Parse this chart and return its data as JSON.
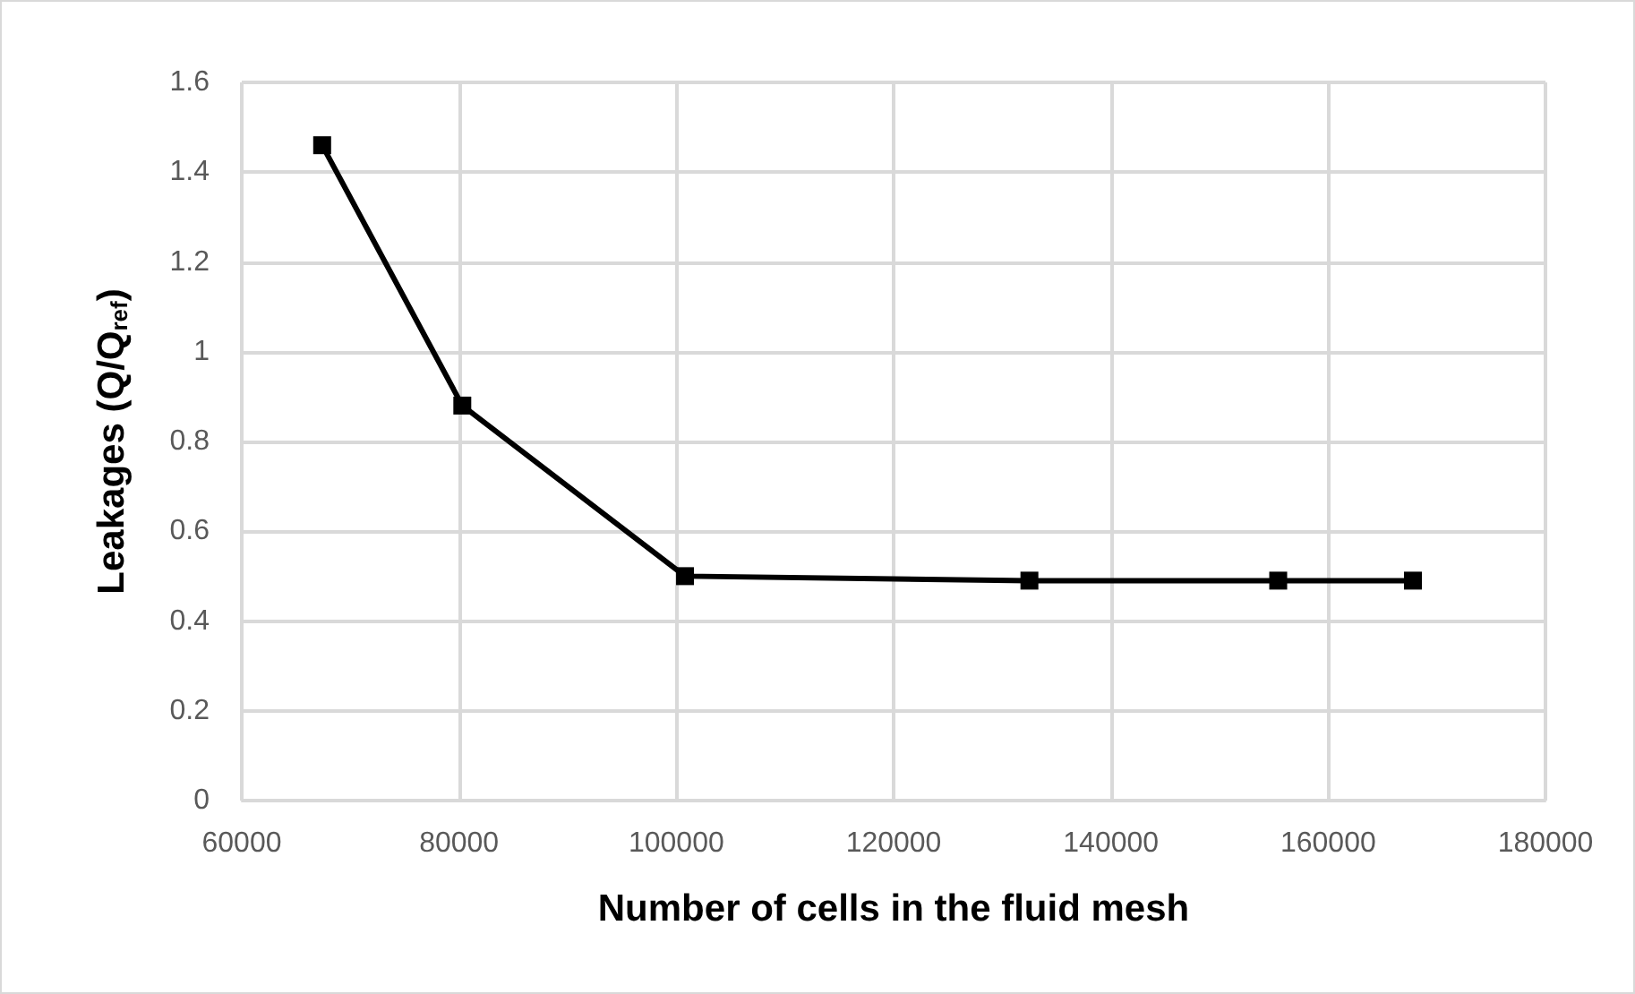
{
  "chart_data": {
    "type": "line",
    "xlabel": "Number of cells in the fluid mesh",
    "ylabel": "Leakages (Q/Q$_{ref}$)",
    "x": [
      67400,
      80300,
      100800,
      132500,
      155400,
      167800
    ],
    "series": [
      {
        "color": "#000000",
        "values": [
          1.46,
          0.88,
          0.5,
          0.49,
          0.49,
          0.49
        ]
      }
    ],
    "xlim": [
      60000,
      180000
    ],
    "xticks": [
      60000,
      80000,
      100000,
      120000,
      140000,
      160000,
      180000
    ],
    "ylim": [
      0,
      1.6
    ],
    "yticks": [
      0,
      0.2,
      0.4,
      0.6,
      0.8,
      1,
      1.2,
      1.4,
      1.6
    ],
    "grid": true,
    "marker": "square",
    "line_style": "solid"
  }
}
